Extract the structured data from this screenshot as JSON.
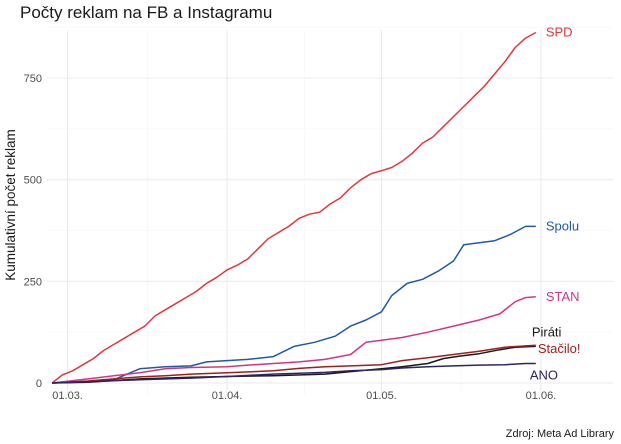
{
  "chart_data": {
    "type": "line",
    "title": "Počty reklam na FB a Instagramu",
    "xlabel": "",
    "ylabel": "Kumulativní počet reklam",
    "caption": "Zdroj: Meta Ad Library",
    "x_ticks": [
      {
        "date": "2025-03-01",
        "label": "01.03."
      },
      {
        "date": "2025-04-01",
        "label": "01.04."
      },
      {
        "date": "2025-05-01",
        "label": "01.05."
      },
      {
        "date": "2025-06-01",
        "label": "01.06."
      }
    ],
    "y_ticks": [
      0,
      250,
      500,
      750
    ],
    "xlim": [
      "2025-02-25",
      "2025-06-15"
    ],
    "ylim": [
      0,
      900
    ],
    "grid": true,
    "legend": "none (labels at line ends)",
    "series": [
      {
        "name": "SPD",
        "color": "#e8343a",
        "points": [
          [
            "2025-02-26",
            0
          ],
          [
            "2025-02-28",
            20
          ],
          [
            "2025-03-02",
            30
          ],
          [
            "2025-03-04",
            45
          ],
          [
            "2025-03-06",
            60
          ],
          [
            "2025-03-08",
            80
          ],
          [
            "2025-03-10",
            95
          ],
          [
            "2025-03-12",
            110
          ],
          [
            "2025-03-14",
            125
          ],
          [
            "2025-03-16",
            140
          ],
          [
            "2025-03-18",
            165
          ],
          [
            "2025-03-20",
            180
          ],
          [
            "2025-03-22",
            195
          ],
          [
            "2025-03-24",
            210
          ],
          [
            "2025-03-26",
            225
          ],
          [
            "2025-03-28",
            245
          ],
          [
            "2025-03-30",
            260
          ],
          [
            "2025-04-01",
            278
          ],
          [
            "2025-04-03",
            290
          ],
          [
            "2025-04-05",
            305
          ],
          [
            "2025-04-07",
            330
          ],
          [
            "2025-04-09",
            355
          ],
          [
            "2025-04-11",
            370
          ],
          [
            "2025-04-13",
            385
          ],
          [
            "2025-04-15",
            405
          ],
          [
            "2025-04-17",
            415
          ],
          [
            "2025-04-19",
            420
          ],
          [
            "2025-04-21",
            440
          ],
          [
            "2025-04-23",
            455
          ],
          [
            "2025-04-25",
            480
          ],
          [
            "2025-04-27",
            500
          ],
          [
            "2025-04-29",
            515
          ],
          [
            "2025-05-01",
            522
          ],
          [
            "2025-05-03",
            530
          ],
          [
            "2025-05-05",
            545
          ],
          [
            "2025-05-07",
            565
          ],
          [
            "2025-05-09",
            590
          ],
          [
            "2025-05-11",
            605
          ],
          [
            "2025-05-13",
            630
          ],
          [
            "2025-05-15",
            655
          ],
          [
            "2025-05-17",
            680
          ],
          [
            "2025-05-19",
            705
          ],
          [
            "2025-05-21",
            730
          ],
          [
            "2025-05-23",
            760
          ],
          [
            "2025-05-25",
            790
          ],
          [
            "2025-05-27",
            825
          ],
          [
            "2025-05-29",
            848
          ],
          [
            "2025-05-31",
            862
          ]
        ]
      },
      {
        "name": "Spolu",
        "color": "#1f5aa6",
        "points": [
          [
            "2025-02-26",
            0
          ],
          [
            "2025-03-05",
            3
          ],
          [
            "2025-03-10",
            8
          ],
          [
            "2025-03-15",
            35
          ],
          [
            "2025-03-20",
            40
          ],
          [
            "2025-03-25",
            42
          ],
          [
            "2025-03-28",
            52
          ],
          [
            "2025-04-01",
            55
          ],
          [
            "2025-04-05",
            58
          ],
          [
            "2025-04-10",
            65
          ],
          [
            "2025-04-14",
            90
          ],
          [
            "2025-04-18",
            100
          ],
          [
            "2025-04-22",
            115
          ],
          [
            "2025-04-25",
            140
          ],
          [
            "2025-04-28",
            155
          ],
          [
            "2025-05-01",
            175
          ],
          [
            "2025-05-03",
            215
          ],
          [
            "2025-05-06",
            245
          ],
          [
            "2025-05-09",
            255
          ],
          [
            "2025-05-12",
            275
          ],
          [
            "2025-05-15",
            300
          ],
          [
            "2025-05-17",
            340
          ],
          [
            "2025-05-20",
            345
          ],
          [
            "2025-05-23",
            350
          ],
          [
            "2025-05-26",
            365
          ],
          [
            "2025-05-29",
            385
          ],
          [
            "2025-05-31",
            385
          ]
        ]
      },
      {
        "name": "STAN",
        "color": "#d63384",
        "points": [
          [
            "2025-02-26",
            0
          ],
          [
            "2025-03-05",
            10
          ],
          [
            "2025-03-10",
            18
          ],
          [
            "2025-03-15",
            25
          ],
          [
            "2025-03-20",
            35
          ],
          [
            "2025-03-25",
            38
          ],
          [
            "2025-04-01",
            40
          ],
          [
            "2025-04-05",
            44
          ],
          [
            "2025-04-10",
            48
          ],
          [
            "2025-04-15",
            52
          ],
          [
            "2025-04-20",
            58
          ],
          [
            "2025-04-25",
            70
          ],
          [
            "2025-04-28",
            100
          ],
          [
            "2025-05-01",
            105
          ],
          [
            "2025-05-05",
            112
          ],
          [
            "2025-05-10",
            125
          ],
          [
            "2025-05-15",
            140
          ],
          [
            "2025-05-20",
            155
          ],
          [
            "2025-05-24",
            170
          ],
          [
            "2025-05-27",
            200
          ],
          [
            "2025-05-29",
            210
          ],
          [
            "2025-05-31",
            212
          ]
        ]
      },
      {
        "name": "Piráti",
        "color": "#1a1a1a",
        "points": [
          [
            "2025-02-26",
            0
          ],
          [
            "2025-03-05",
            2
          ],
          [
            "2025-03-15",
            10
          ],
          [
            "2025-03-25",
            14
          ],
          [
            "2025-04-01",
            16
          ],
          [
            "2025-04-10",
            18
          ],
          [
            "2025-04-20",
            22
          ],
          [
            "2025-04-25",
            28
          ],
          [
            "2025-05-01",
            35
          ],
          [
            "2025-05-05",
            40
          ],
          [
            "2025-05-10",
            48
          ],
          [
            "2025-05-13",
            60
          ],
          [
            "2025-05-16",
            66
          ],
          [
            "2025-05-20",
            72
          ],
          [
            "2025-05-24",
            82
          ],
          [
            "2025-05-27",
            88
          ],
          [
            "2025-05-31",
            90
          ]
        ]
      },
      {
        "name": "Stačilo!",
        "color": "#a31d1d",
        "points": [
          [
            "2025-02-26",
            0
          ],
          [
            "2025-03-05",
            5
          ],
          [
            "2025-03-10",
            10
          ],
          [
            "2025-03-15",
            15
          ],
          [
            "2025-03-20",
            18
          ],
          [
            "2025-03-25",
            22
          ],
          [
            "2025-04-01",
            25
          ],
          [
            "2025-04-10",
            30
          ],
          [
            "2025-04-15",
            36
          ],
          [
            "2025-04-20",
            40
          ],
          [
            "2025-04-25",
            42
          ],
          [
            "2025-05-01",
            45
          ],
          [
            "2025-05-05",
            55
          ],
          [
            "2025-05-10",
            62
          ],
          [
            "2025-05-15",
            70
          ],
          [
            "2025-05-20",
            78
          ],
          [
            "2025-05-25",
            88
          ],
          [
            "2025-05-31",
            93
          ]
        ]
      },
      {
        "name": "ANO",
        "color": "#2b2566",
        "points": [
          [
            "2025-02-26",
            0
          ],
          [
            "2025-03-05",
            3
          ],
          [
            "2025-03-15",
            8
          ],
          [
            "2025-03-25",
            12
          ],
          [
            "2025-04-01",
            16
          ],
          [
            "2025-04-10",
            22
          ],
          [
            "2025-04-20",
            26
          ],
          [
            "2025-04-25",
            30
          ],
          [
            "2025-05-01",
            33
          ],
          [
            "2025-05-05",
            37
          ],
          [
            "2025-05-10",
            40
          ],
          [
            "2025-05-15",
            42
          ],
          [
            "2025-05-20",
            44
          ],
          [
            "2025-05-25",
            45
          ],
          [
            "2025-05-29",
            48
          ],
          [
            "2025-05-31",
            48
          ]
        ]
      }
    ]
  }
}
